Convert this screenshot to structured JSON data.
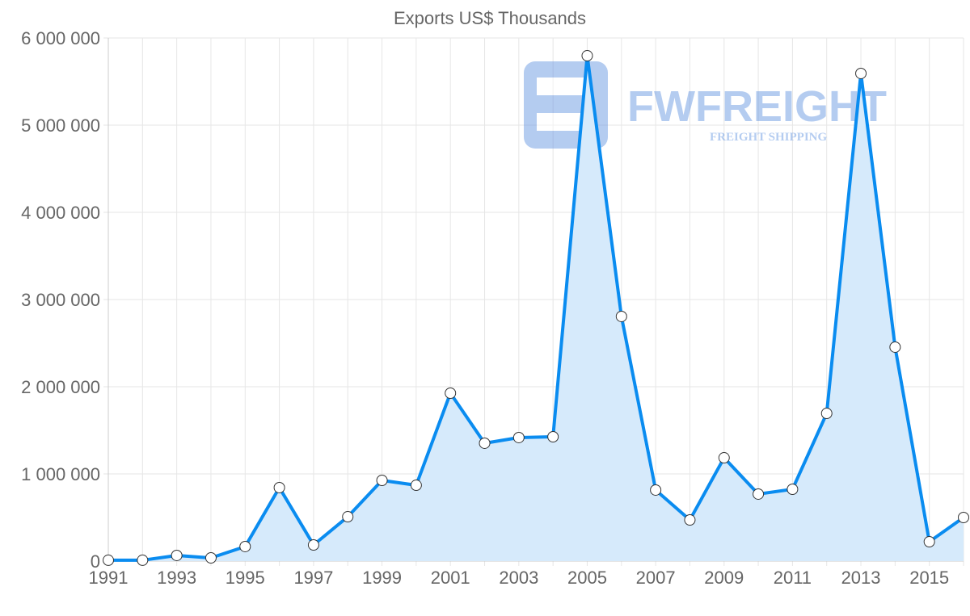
{
  "chart_data": {
    "type": "area",
    "title": "Exports US$ Thousands",
    "xlabel": "",
    "ylabel": "",
    "x": [
      1991,
      1992,
      1993,
      1994,
      1995,
      1996,
      1997,
      1998,
      1999,
      2000,
      2001,
      2002,
      2003,
      2004,
      2005,
      2006,
      2007,
      2008,
      2009,
      2010,
      2011,
      2012,
      2013,
      2014,
      2015,
      2016
    ],
    "series": [
      {
        "name": "Exports US$ Thousands",
        "values": [
          10000,
          10000,
          65000,
          37000,
          167000,
          843000,
          185000,
          509000,
          926000,
          870000,
          1926000,
          1352000,
          1417000,
          1426000,
          5796000,
          2806000,
          815000,
          472000,
          1185000,
          769000,
          824000,
          1694000,
          5593000,
          2454000,
          222000,
          500000
        ]
      }
    ],
    "ylim": [
      0,
      6000000
    ],
    "yticks": [
      "0",
      "1 000 000",
      "2 000 000",
      "3 000 000",
      "4 000 000",
      "5 000 000",
      "6 000 000"
    ],
    "xticks": [
      "1991",
      "1993",
      "1995",
      "1997",
      "1999",
      "2001",
      "2003",
      "2005",
      "2007",
      "2009",
      "2011",
      "2013",
      "2015"
    ],
    "grid": true,
    "legend": "none",
    "colors": {
      "line": "#0a8cf0",
      "fill": "#d6eafb",
      "grid": "#e6e6e6",
      "point_fill": "#ffffff",
      "point_stroke": "#333333"
    }
  },
  "watermark": {
    "brand": "FWFREIGHT",
    "tagline": "FREIGHT SHIPPING"
  }
}
